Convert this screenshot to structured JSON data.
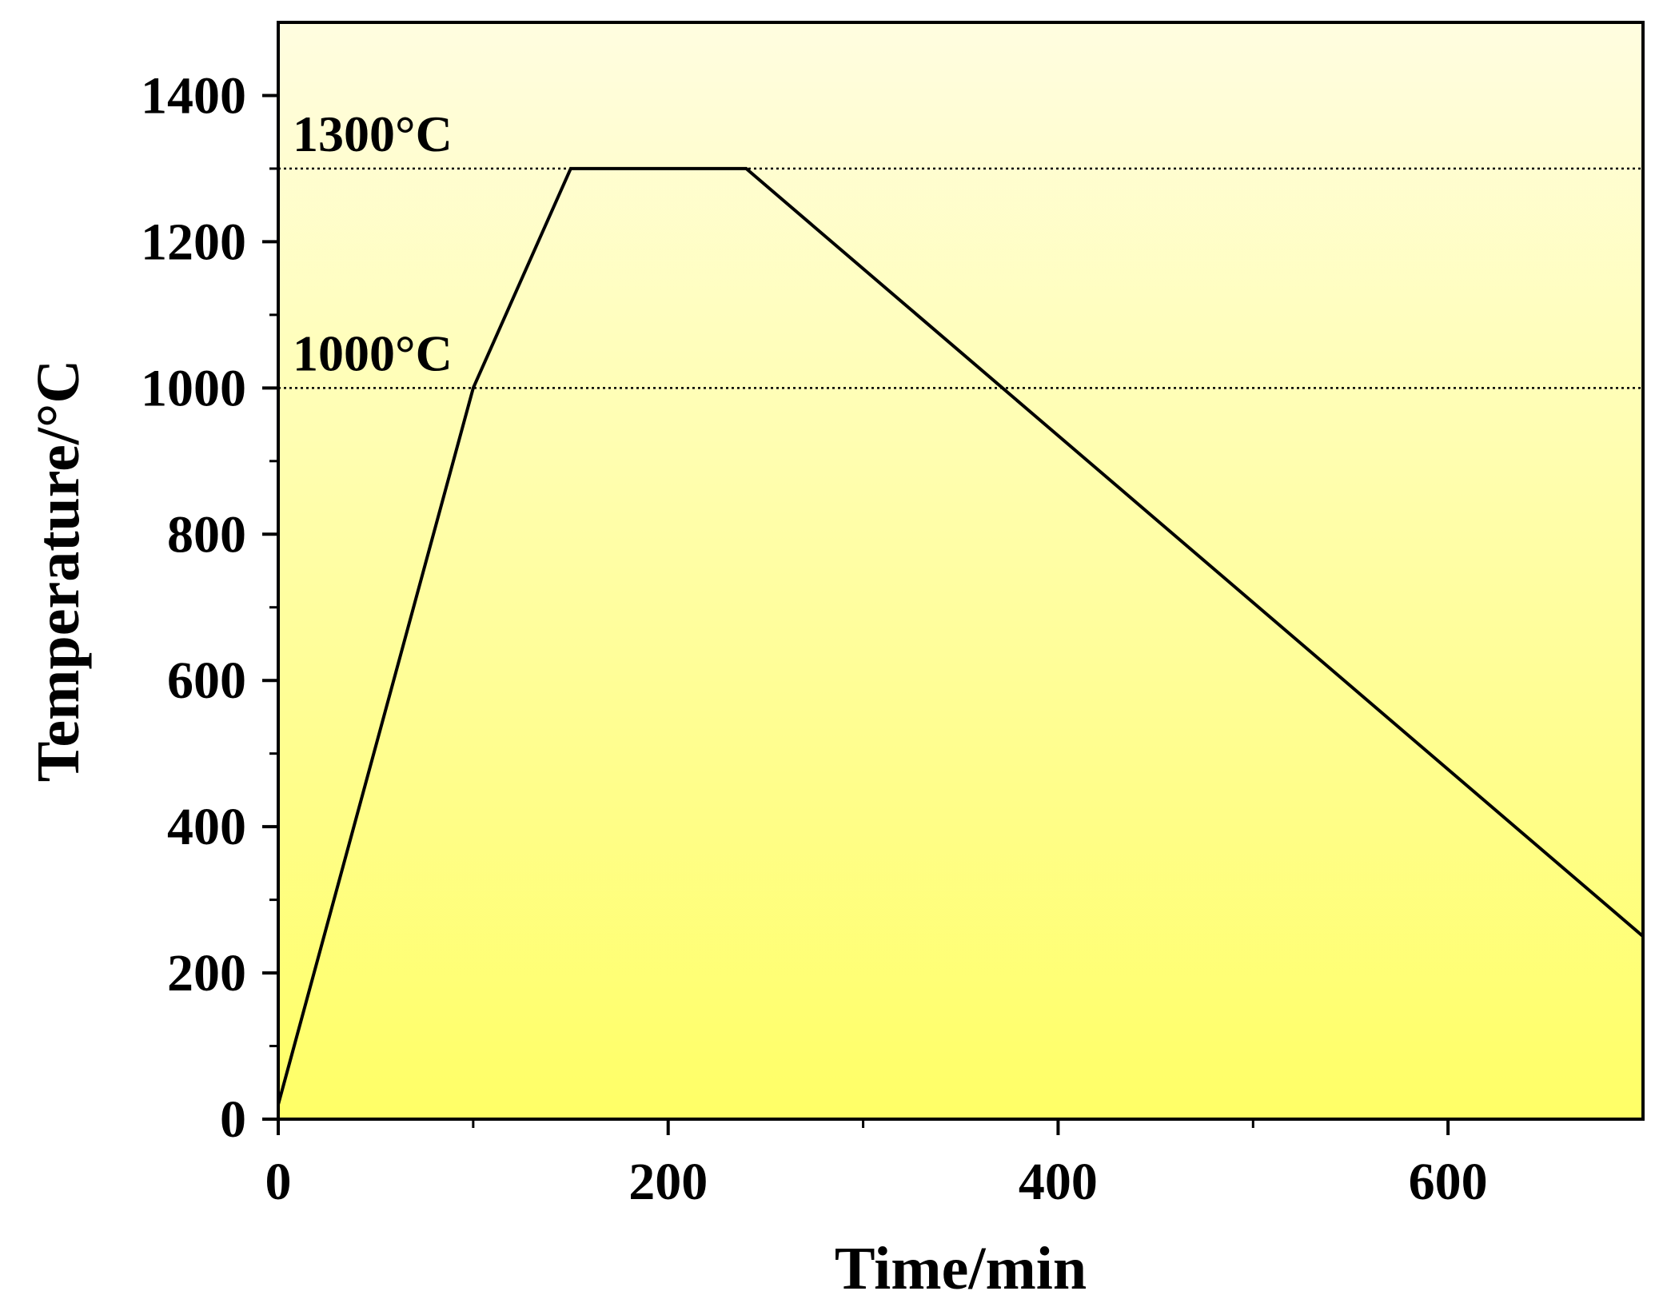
{
  "chart_data": {
    "type": "line",
    "title": "",
    "xlabel": "Time/min",
    "ylabel": "Temperature/°C",
    "xlim": [
      0,
      700
    ],
    "ylim": [
      0,
      1500
    ],
    "x_ticks": [
      0,
      200,
      400,
      600
    ],
    "x_tick_labels": [
      "0",
      "200",
      "400",
      "600"
    ],
    "x_minor_ticks": [
      100,
      300,
      500
    ],
    "y_ticks": [
      0,
      200,
      400,
      600,
      800,
      1000,
      1200,
      1400
    ],
    "y_tick_labels": [
      "0",
      "200",
      "400",
      "600",
      "800",
      "1000",
      "1200",
      "1400"
    ],
    "y_minor_ticks": [
      100,
      300,
      500,
      700,
      900,
      1100,
      1300
    ],
    "grid": false,
    "legend": "none",
    "series": [
      {
        "x": [
          0,
          100,
          150,
          240,
          700
        ],
        "y": [
          20,
          1000,
          1300,
          1300,
          250
        ]
      }
    ],
    "reference_lines": [
      {
        "y": 1300,
        "label": "1300°C",
        "style": "dotted"
      },
      {
        "y": 1000,
        "label": "1000°C",
        "style": "dotted"
      }
    ],
    "background_gradient": {
      "top": "#fffde0",
      "bottom": "#ffff66"
    },
    "line_color": "#000000"
  }
}
